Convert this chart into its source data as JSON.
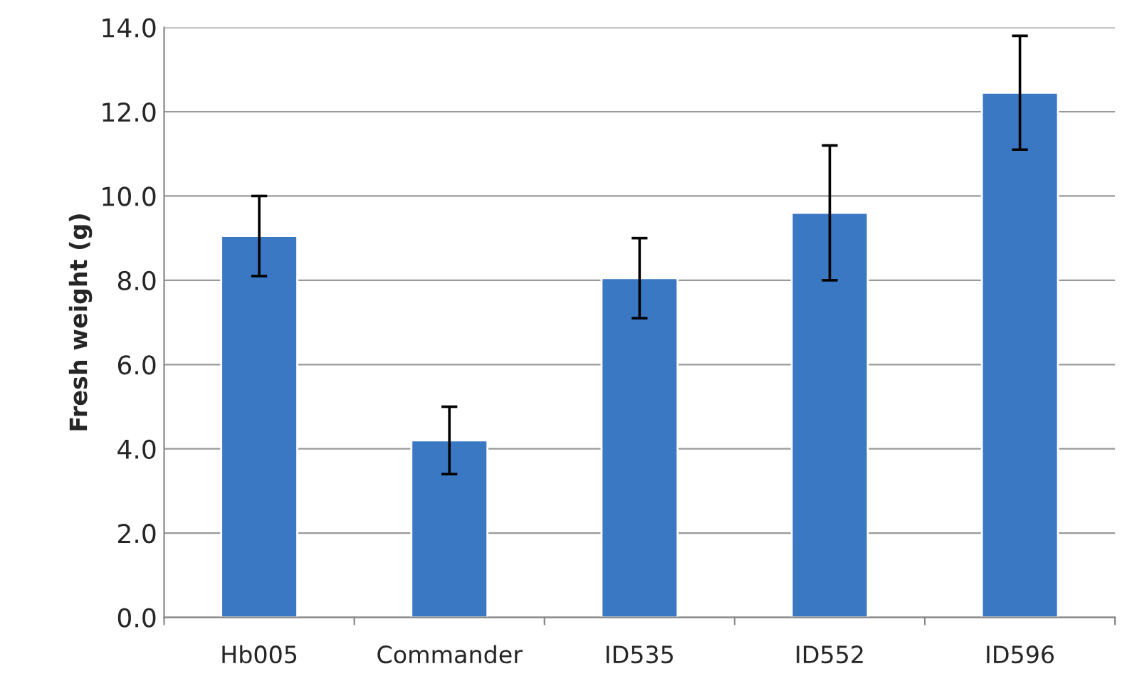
{
  "chart_data": {
    "type": "bar",
    "ylabel": "Fresh weight (g)",
    "categories": [
      "Hb005",
      "Commander",
      "ID535",
      "ID552",
      "ID596"
    ],
    "values": [
      9.05,
      4.2,
      8.05,
      9.6,
      12.45
    ],
    "errors": [
      0.95,
      0.8,
      0.95,
      1.6,
      1.35
    ],
    "color": "#3b78c4",
    "ylim": [
      0,
      14
    ],
    "yticks": [
      {
        "value": 0,
        "label": "0.0"
      },
      {
        "value": 2,
        "label": "2.0"
      },
      {
        "value": 4,
        "label": "4.0"
      },
      {
        "value": 6,
        "label": "6.0"
      },
      {
        "value": 8,
        "label": "8.0"
      },
      {
        "value": 10,
        "label": "10.0"
      },
      {
        "value": 12,
        "label": "12.0"
      },
      {
        "value": 14,
        "label": "14.0"
      }
    ],
    "grid": "y",
    "legend": false
  }
}
